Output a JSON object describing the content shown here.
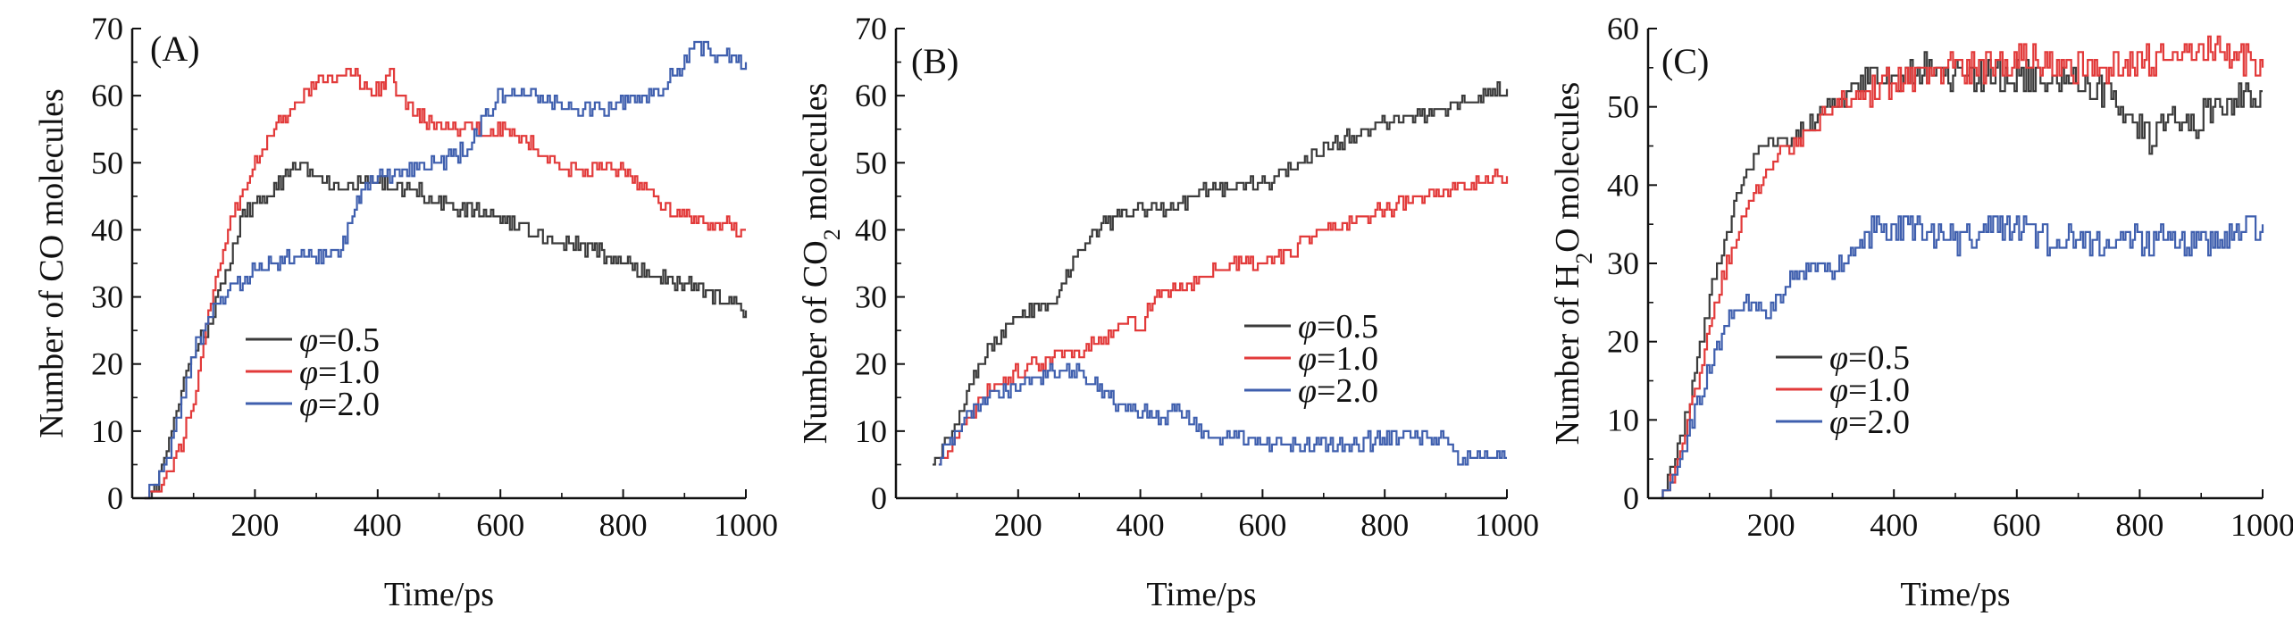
{
  "colors": {
    "phi_0_5": "#3b3b3b",
    "phi_1_0": "#e23a3a",
    "phi_2_0": "#3f5fae",
    "axis": "#111111"
  },
  "chart_data": [
    {
      "type": "line",
      "panel_label": "(A)",
      "title": "",
      "xlabel": "Time/ps",
      "ylabel": "Number of CO molecules",
      "xlim": [
        0,
        1000
      ],
      "ylim": [
        0,
        70
      ],
      "xticks": [
        "200",
        "400",
        "600",
        "800",
        "1000"
      ],
      "yticks": [
        "0",
        "10",
        "20",
        "30",
        "40",
        "50",
        "60",
        "70"
      ],
      "legend": {
        "position": "center-left",
        "entries": [
          {
            "symbol": "φ",
            "text": "=0.5"
          },
          {
            "symbol": "φ",
            "text": "=1.0"
          },
          {
            "symbol": "φ",
            "text": "=2.0"
          }
        ]
      },
      "series": [
        {
          "name": "φ=0.5",
          "color": "#3b3b3b",
          "x": [
            20,
            40,
            60,
            80,
            100,
            120,
            140,
            160,
            180,
            200,
            220,
            250,
            270,
            290,
            310,
            340,
            380,
            420,
            460,
            500,
            550,
            600,
            650,
            700,
            750,
            800,
            850,
            900,
            950,
            1000
          ],
          "y": [
            0,
            2,
            8,
            16,
            22,
            25,
            30,
            36,
            42,
            44,
            45,
            48,
            50,
            49,
            47,
            46,
            47,
            47,
            46,
            44,
            43,
            42,
            40,
            38,
            37,
            35,
            33,
            32,
            30,
            28
          ]
        },
        {
          "name": "φ=1.0",
          "color": "#e23a3a",
          "x": [
            20,
            40,
            60,
            80,
            100,
            120,
            140,
            160,
            180,
            200,
            220,
            250,
            280,
            300,
            330,
            360,
            390,
            410,
            420,
            430,
            450,
            480,
            500,
            550,
            600,
            650,
            700,
            750,
            800,
            850,
            900,
            950,
            1000
          ],
          "y": [
            0,
            1,
            4,
            8,
            15,
            25,
            34,
            42,
            46,
            50,
            53,
            57,
            60,
            62,
            63,
            63,
            60,
            62,
            65,
            60,
            58,
            56,
            55,
            55,
            55,
            53,
            49,
            49,
            49,
            45,
            42,
            41,
            40
          ]
        },
        {
          "name": "φ=2.0",
          "color": "#3f5fae",
          "x": [
            20,
            40,
            60,
            80,
            100,
            120,
            140,
            160,
            180,
            200,
            230,
            260,
            300,
            340,
            370,
            380,
            420,
            460,
            500,
            520,
            550,
            580,
            600,
            650,
            700,
            750,
            800,
            850,
            900,
            920,
            950,
            1000
          ],
          "y": [
            0,
            3,
            7,
            14,
            22,
            26,
            29,
            31,
            32,
            34,
            35,
            36,
            36,
            37,
            45,
            47,
            48,
            49,
            50,
            51,
            52,
            58,
            60,
            60,
            59,
            58,
            59,
            60,
            65,
            68,
            66,
            65
          ]
        }
      ]
    },
    {
      "type": "line",
      "panel_label": "(B)",
      "title": "",
      "xlabel": "Time/ps",
      "ylabel": "Number of CO2 molecules",
      "ylabel_parts": {
        "prefix": "Number of CO",
        "sub": "2",
        "suffix": " molecules"
      },
      "xlim": [
        0,
        1000
      ],
      "ylim": [
        0,
        70
      ],
      "xticks": [
        "200",
        "400",
        "600",
        "800",
        "1000"
      ],
      "yticks": [
        "0",
        "10",
        "20",
        "30",
        "40",
        "50",
        "60",
        "70"
      ],
      "legend": {
        "position": "center-right",
        "entries": [
          {
            "symbol": "φ",
            "text": "=0.5"
          },
          {
            "symbol": "φ",
            "text": "=1.0"
          },
          {
            "symbol": "φ",
            "text": "=2.0"
          }
        ]
      },
      "series": [
        {
          "name": "φ=0.5",
          "color": "#3b3b3b",
          "x": [
            60,
            80,
            100,
            120,
            150,
            180,
            200,
            230,
            260,
            290,
            310,
            340,
            370,
            400,
            430,
            470,
            500,
            550,
            600,
            650,
            700,
            750,
            800,
            850,
            900,
            950,
            1000
          ],
          "y": [
            6,
            8,
            12,
            17,
            22,
            25,
            27,
            28,
            30,
            35,
            38,
            41,
            42,
            43,
            43,
            44,
            46,
            46,
            47,
            49,
            52,
            54,
            56,
            57,
            58,
            60,
            61
          ]
        },
        {
          "name": "φ=1.0",
          "color": "#e23a3a",
          "x": [
            70,
            100,
            120,
            150,
            180,
            200,
            230,
            260,
            300,
            340,
            380,
            400,
            420,
            450,
            480,
            500,
            550,
            600,
            650,
            700,
            750,
            800,
            850,
            900,
            950,
            1000
          ],
          "y": [
            6,
            8,
            12,
            16,
            17,
            19,
            20,
            21,
            22,
            24,
            27,
            25,
            30,
            31,
            32,
            33,
            35,
            35,
            37,
            40,
            41,
            43,
            45,
            46,
            47,
            48
          ]
        },
        {
          "name": "φ=2.0",
          "color": "#3f5fae",
          "x": [
            70,
            100,
            120,
            150,
            180,
            200,
            230,
            260,
            300,
            330,
            360,
            400,
            430,
            460,
            500,
            550,
            600,
            650,
            700,
            750,
            800,
            850,
            900,
            920,
            940,
            960,
            1000
          ],
          "y": [
            6,
            10,
            13,
            15,
            16,
            17,
            18,
            19,
            19,
            17,
            14,
            13,
            12,
            13,
            10,
            9,
            8,
            8,
            8,
            8,
            9,
            9,
            9,
            5,
            7,
            6,
            6
          ]
        }
      ]
    },
    {
      "type": "line",
      "panel_label": "(C)",
      "title": "",
      "xlabel": "Time/ps",
      "ylabel": "Number of H2O molecules",
      "ylabel_parts": {
        "prefix": "Number of H",
        "sub": "2",
        "suffix": "O molecules"
      },
      "xlim": [
        0,
        1000
      ],
      "ylim": [
        0,
        60
      ],
      "xticks": [
        "200",
        "400",
        "600",
        "800",
        "1000"
      ],
      "yticks": [
        "0",
        "10",
        "20",
        "30",
        "40",
        "50",
        "60"
      ],
      "legend": {
        "position": "center-left",
        "entries": [
          {
            "symbol": "φ",
            "text": "=0.5"
          },
          {
            "symbol": "φ",
            "text": "=1.0"
          },
          {
            "symbol": "φ",
            "text": "=2.0"
          }
        ]
      },
      "series": [
        {
          "name": "φ=0.5",
          "color": "#3b3b3b",
          "x": [
            20,
            40,
            60,
            80,
            100,
            120,
            140,
            160,
            180,
            200,
            230,
            260,
            300,
            350,
            400,
            450,
            500,
            550,
            600,
            650,
            700,
            750,
            800,
            820,
            850,
            880,
            900,
            950,
            1000
          ],
          "y": [
            0,
            4,
            10,
            18,
            26,
            32,
            37,
            42,
            45,
            45,
            46,
            48,
            50,
            53,
            54,
            55,
            54,
            54,
            54,
            53,
            53,
            52,
            48,
            45,
            50,
            47,
            49,
            51,
            52
          ]
        },
        {
          "name": "φ=1.0",
          "color": "#e23a3a",
          "x": [
            20,
            40,
            60,
            80,
            100,
            120,
            140,
            160,
            180,
            200,
            230,
            260,
            300,
            350,
            400,
            450,
            500,
            550,
            600,
            650,
            700,
            750,
            800,
            850,
            900,
            950,
            1000
          ],
          "y": [
            0,
            3,
            8,
            15,
            22,
            28,
            33,
            37,
            40,
            42,
            45,
            47,
            50,
            52,
            53,
            54,
            55,
            55,
            56,
            56,
            55,
            55,
            56,
            56,
            57,
            57,
            55
          ]
        },
        {
          "name": "φ=2.0",
          "color": "#3f5fae",
          "x": [
            20,
            40,
            60,
            80,
            100,
            120,
            140,
            160,
            180,
            200,
            220,
            250,
            280,
            300,
            330,
            360,
            380,
            400,
            450,
            500,
            550,
            600,
            650,
            700,
            750,
            800,
            850,
            900,
            950,
            1000
          ],
          "y": [
            0,
            3,
            7,
            12,
            17,
            21,
            24,
            25,
            24,
            24,
            27,
            29,
            30,
            29,
            31,
            34,
            35,
            35,
            34,
            33,
            34,
            35,
            33,
            33,
            33,
            33,
            33,
            33,
            34,
            35
          ]
        }
      ]
    }
  ]
}
